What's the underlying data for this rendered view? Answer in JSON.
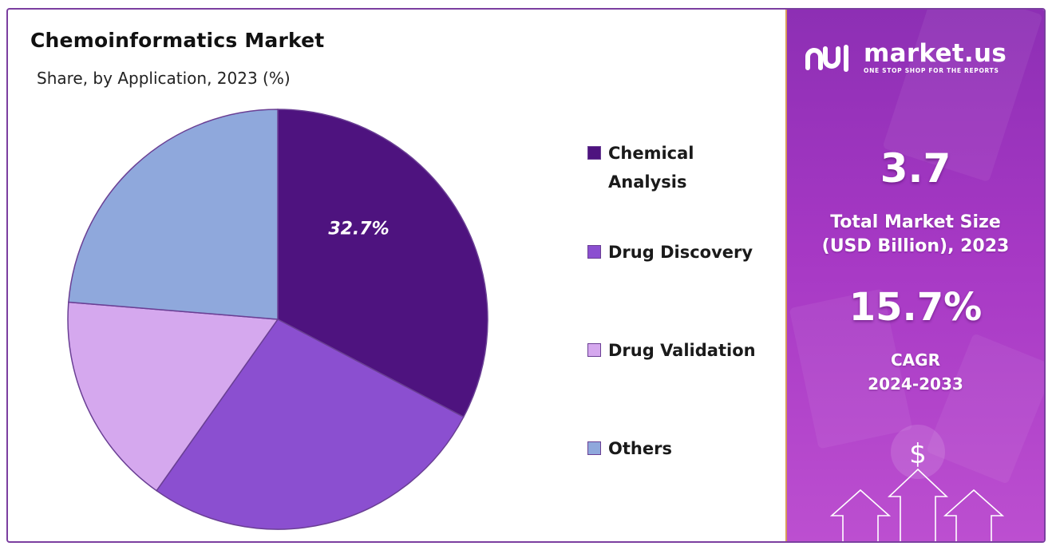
{
  "chart_data": {
    "type": "pie",
    "title": "Chemoinformatics Market",
    "subtitle": "Share, by Application, 2023 (%)",
    "categories": [
      "Chemical Analysis",
      "Drug Discovery",
      "Drug Validation",
      "Others"
    ],
    "values": [
      32.7,
      27.1,
      16.5,
      23.7
    ],
    "colors": [
      "#4e137f",
      "#8b4fd0",
      "#d5a8ee",
      "#8fa8dc"
    ],
    "data_labels": [
      "32.7%",
      "",
      "",
      ""
    ],
    "legend_position": "right"
  },
  "legend": {
    "items": [
      {
        "label": "Chemical\nAnalysis",
        "color": "#4e137f"
      },
      {
        "label": "Drug Discovery",
        "color": "#8b4fd0"
      },
      {
        "label": "Drug Validation",
        "color": "#d5a8ee"
      },
      {
        "label": "Others",
        "color": "#8fa8dc"
      }
    ]
  },
  "panel": {
    "brand_name": "market.us",
    "brand_tagline": "ONE STOP SHOP FOR THE REPORTS",
    "market_size_value": "3.7",
    "market_size_label": "Total Market Size\n(USD Billion), 2023",
    "cagr_value": "15.7%",
    "cagr_label": "CAGR\n2024-2033",
    "dollar_symbol": "$",
    "background_color": "#a638c4",
    "logo_icon": "market-us-logo-icon"
  }
}
